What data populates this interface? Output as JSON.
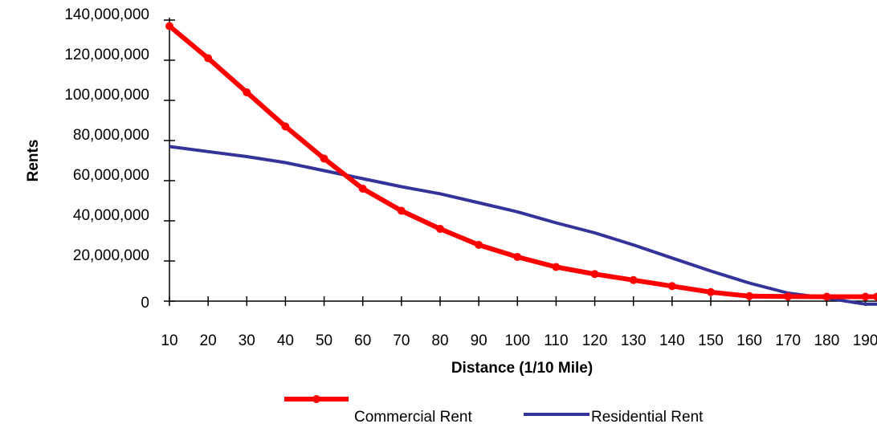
{
  "chart_data": {
    "type": "line",
    "title": "",
    "xlabel": "Distance (1/10 Mile)",
    "ylabel": "Rents",
    "x": [
      10,
      20,
      30,
      40,
      50,
      60,
      70,
      80,
      90,
      100,
      110,
      120,
      130,
      140,
      150,
      160,
      170,
      180,
      190,
      193
    ],
    "x_tick_labels": [
      "10",
      "20",
      "30",
      "40",
      "50",
      "60",
      "70",
      "80",
      "90",
      "100",
      "110",
      "120",
      "130",
      "140",
      "150",
      "160",
      "170",
      "180",
      "190"
    ],
    "y_tick_labels": [
      "0",
      "20,000,000",
      "40,000,000",
      "60,000,000",
      "80,000,000",
      "100,000,000",
      "120,000,000",
      "140,000,000"
    ],
    "y_tick_values": [
      0,
      20000000,
      40000000,
      60000000,
      80000000,
      100000000,
      120000000,
      140000000
    ],
    "ylim": [
      0,
      140000000
    ],
    "xlim": [
      10,
      193
    ],
    "grid": false,
    "legend_position": "bottom",
    "series": [
      {
        "name": "Commercial Rent",
        "color": "#ff0000",
        "marker": "circle",
        "values": [
          137000000,
          121000000,
          104000000,
          87000000,
          71000000,
          56000000,
          45000000,
          36000000,
          28000000,
          22000000,
          17000000,
          13500000,
          10500000,
          7500000,
          4500000,
          2500000,
          2300000,
          2200000,
          2200000,
          2200000
        ]
      },
      {
        "name": "Residential Rent",
        "color": "#333399",
        "marker": "none",
        "values": [
          77000000,
          74500000,
          72000000,
          69000000,
          65000000,
          61000000,
          57000000,
          53500000,
          49000000,
          44500000,
          39000000,
          34000000,
          28000000,
          21500000,
          15000000,
          9000000,
          4000000,
          1500000,
          -1500000,
          -1500000
        ]
      }
    ]
  }
}
